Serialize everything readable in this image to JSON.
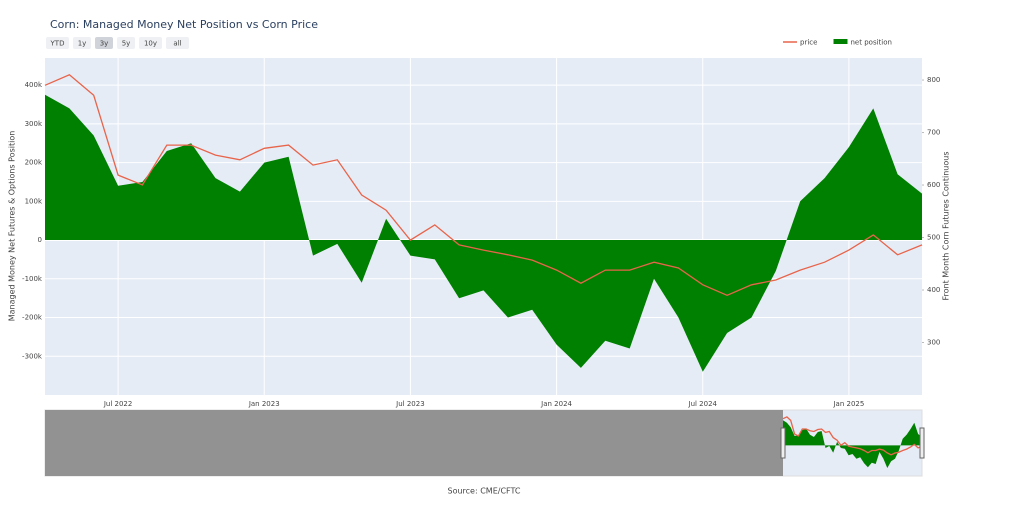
{
  "chart_data": {
    "type": "line",
    "title": "Corn: Managed Money Net Position vs Corn Price",
    "range_buttons": [
      "YTD",
      "1y",
      "3y",
      "5y",
      "10y",
      "all"
    ],
    "active_button": 2,
    "y_label": "Managed Money Net Futures & Options Position",
    "y2_label": "Front Month Corn Futures Continuous",
    "source": "Source: CME/CFTC",
    "legend": "top-right",
    "grid": true,
    "x": [
      "2022-04",
      "2022-05",
      "2022-06",
      "2022-07",
      "2022-08",
      "2022-09",
      "2022-10",
      "2022-11",
      "2022-12",
      "2023-01",
      "2023-02",
      "2023-03",
      "2023-04",
      "2023-05",
      "2023-06",
      "2023-07",
      "2023-08",
      "2023-09",
      "2023-10",
      "2023-11",
      "2023-12",
      "2024-01",
      "2024-02",
      "2024-03",
      "2024-04",
      "2024-05",
      "2024-06",
      "2024-07",
      "2024-08",
      "2024-09",
      "2024-10",
      "2024-11",
      "2024-12",
      "2025-01",
      "2025-02",
      "2025-03",
      "2025-04"
    ],
    "xlim": [
      "2022-04",
      "2025-04"
    ],
    "xticks": [
      {
        "value": "2022-07",
        "label": "Jul 2022"
      },
      {
        "value": "2023-01",
        "label": "Jan 2023"
      },
      {
        "value": "2023-07",
        "label": "Jul 2023"
      },
      {
        "value": "2024-01",
        "label": "Jan 2024"
      },
      {
        "value": "2024-07",
        "label": "Jul 2024"
      },
      {
        "value": "2025-01",
        "label": "Jan 2025"
      }
    ],
    "ylim": [
      -400000,
      470000
    ],
    "yticks": [
      {
        "value": -300000,
        "label": "-300k"
      },
      {
        "value": -200000,
        "label": "-200k"
      },
      {
        "value": -100000,
        "label": "-100k"
      },
      0,
      {
        "value": 100000,
        "label": "100k"
      },
      {
        "value": 200000,
        "label": "200k"
      },
      {
        "value": 300000,
        "label": "300k"
      },
      {
        "value": 400000,
        "label": "400k"
      }
    ],
    "y2lim": [
      200,
      842
    ],
    "y2ticks": [
      300,
      400,
      500,
      600,
      700,
      800
    ],
    "series": [
      {
        "name": "net position",
        "type": "area",
        "color": "#008000",
        "values": [
          375000,
          340000,
          270000,
          140000,
          150000,
          230000,
          250000,
          160000,
          125000,
          200000,
          215000,
          -40000,
          -10000,
          -110000,
          55000,
          -40000,
          -50000,
          -150000,
          -130000,
          -200000,
          -180000,
          -270000,
          -330000,
          -260000,
          -280000,
          -100000,
          -200000,
          -340000,
          -240000,
          -200000,
          -80000,
          100000,
          160000,
          240000,
          340000,
          170000,
          120000
        ]
      },
      {
        "name": "price",
        "type": "line",
        "axis": "y2",
        "color": "#e8644a",
        "values": [
          790,
          810,
          771,
          619,
          600,
          676,
          676,
          657,
          648,
          670,
          676,
          638,
          648,
          581,
          552,
          495,
          524,
          486,
          476,
          467,
          457,
          438,
          413,
          438,
          438,
          453,
          442,
          410,
          390,
          410,
          419,
          438,
          453,
          476,
          505,
          467,
          486
        ]
      }
    ]
  }
}
